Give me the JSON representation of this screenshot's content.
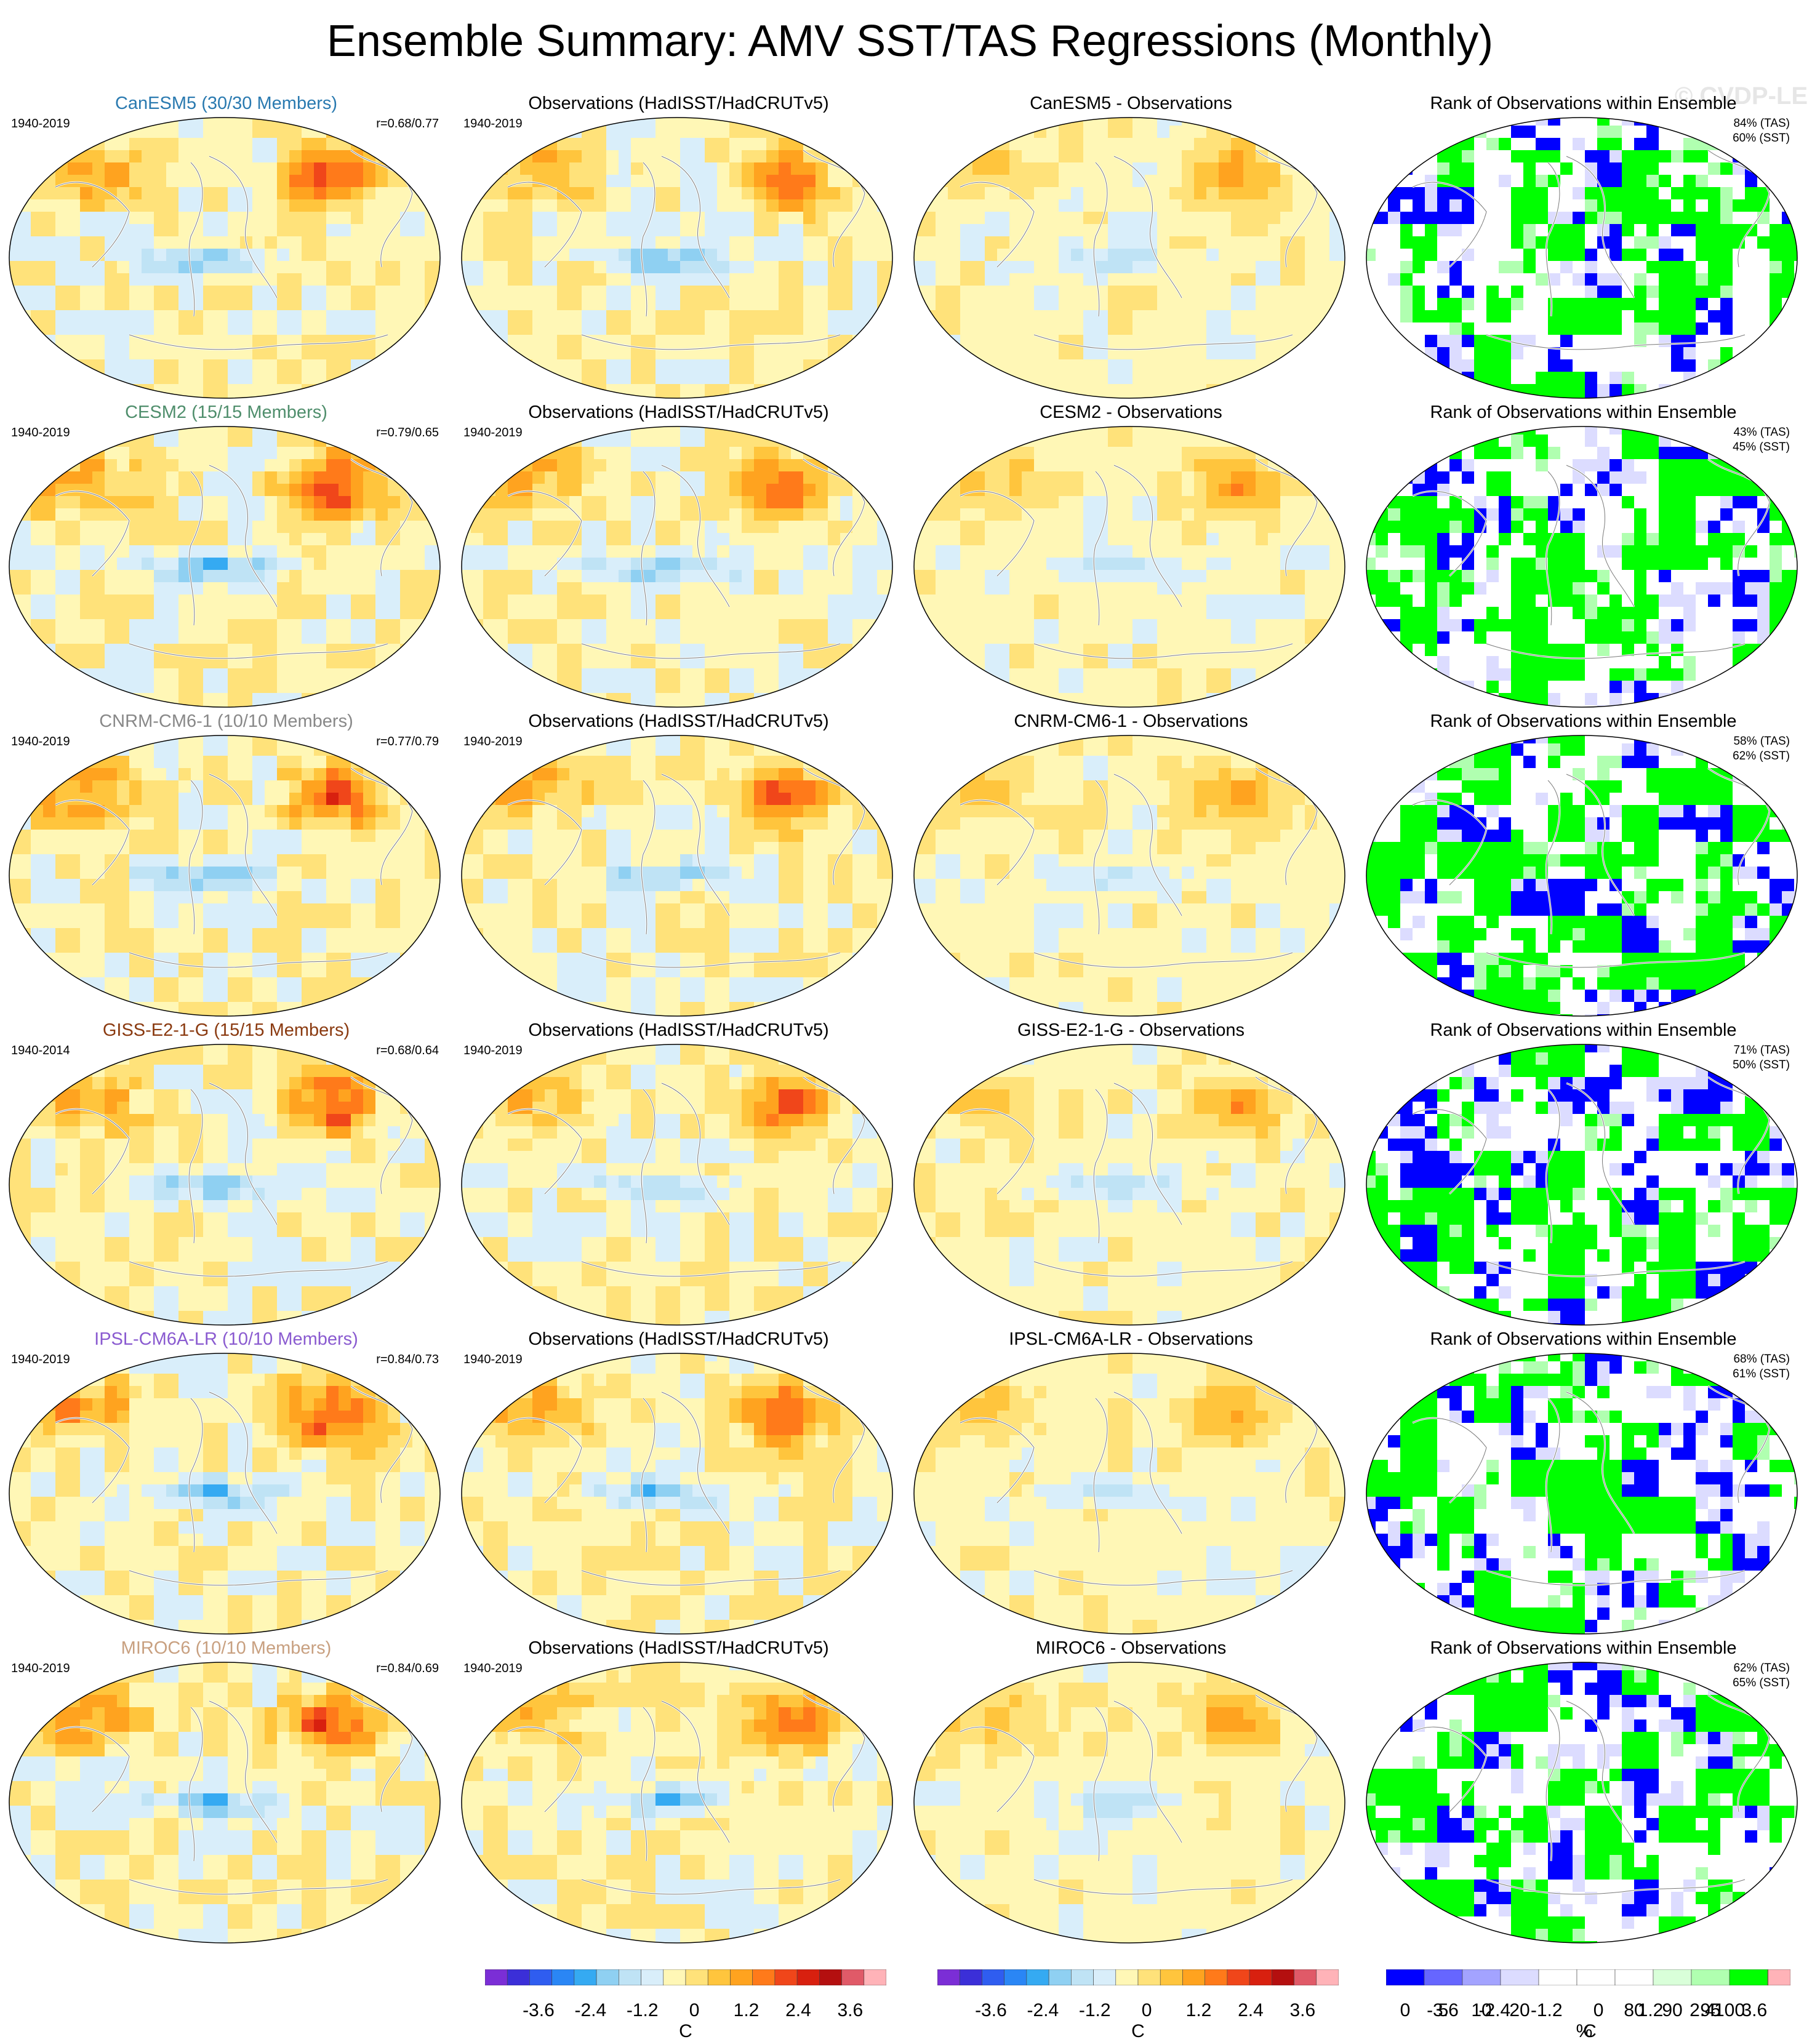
{
  "figure": {
    "title": "Ensemble Summary: AMV SST/TAS Regressions (Monthly)",
    "watermark": "© CVDP-LE"
  },
  "palettes": {
    "diverging": [
      "#7b2ed6",
      "#3b2fd8",
      "#2f5df0",
      "#2a86f5",
      "#35aaf2",
      "#8fd0f2",
      "#bfe3f5",
      "#d9eefa",
      "#fff7b6",
      "#ffe27a",
      "#ffc53d",
      "#ffa31f",
      "#ff7a1a",
      "#f0461a",
      "#d8200f",
      "#b40f0f",
      "#e05a68",
      "#ffb3b8"
    ],
    "rank": [
      "#0000ff",
      "#6666ff",
      "#a3a3ff",
      "#dcdcff",
      "#ffffff",
      "#ffffff",
      "#ffffff",
      "#d9ffd9",
      "#b0ffb0",
      "#00ff00"
    ]
  },
  "rows": [
    {
      "model": {
        "title": "CanESM5 (30/30 Members)",
        "title_color": "#2a7ab0",
        "period": "1940-2019",
        "r": "r=0.68/0.77"
      },
      "obs": {
        "title": "Observations (HadISST/HadCRUTv5)",
        "period": "1940-2019"
      },
      "diff": {
        "title": "CanESM5 - Observations"
      },
      "rank": {
        "title": "Rank of Observations within Ensemble",
        "tas": "84% (TAS)",
        "sst": "60% (SST)"
      }
    },
    {
      "model": {
        "title": "CESM2 (15/15 Members)",
        "title_color": "#4f8e6c",
        "period": "1940-2019",
        "r": "r=0.79/0.65"
      },
      "obs": {
        "title": "Observations (HadISST/HadCRUTv5)",
        "period": "1940-2019"
      },
      "diff": {
        "title": "CESM2 - Observations"
      },
      "rank": {
        "title": "Rank of Observations within Ensemble",
        "tas": "43% (TAS)",
        "sst": "45% (SST)"
      }
    },
    {
      "model": {
        "title": "CNRM-CM6-1 (10/10 Members)",
        "title_color": "#888888",
        "period": "1940-2019",
        "r": "r=0.77/0.79"
      },
      "obs": {
        "title": "Observations (HadISST/HadCRUTv5)",
        "period": "1940-2019"
      },
      "diff": {
        "title": "CNRM-CM6-1 - Observations"
      },
      "rank": {
        "title": "Rank of Observations within Ensemble",
        "tas": "58% (TAS)",
        "sst": "62% (SST)"
      }
    },
    {
      "model": {
        "title": "GISS-E2-1-G (15/15 Members)",
        "title_color": "#8a3a10",
        "period": "1940-2014",
        "r": "r=0.68/0.64"
      },
      "obs": {
        "title": "Observations (HadISST/HadCRUTv5)",
        "period": "1940-2019"
      },
      "diff": {
        "title": "GISS-E2-1-G - Observations"
      },
      "rank": {
        "title": "Rank of Observations within Ensemble",
        "tas": "71% (TAS)",
        "sst": "50% (SST)"
      }
    },
    {
      "model": {
        "title": "IPSL-CM6A-LR (10/10 Members)",
        "title_color": "#8a5bd0",
        "period": "1940-2019",
        "r": "r=0.84/0.73"
      },
      "obs": {
        "title": "Observations (HadISST/HadCRUTv5)",
        "period": "1940-2019"
      },
      "diff": {
        "title": "IPSL-CM6A-LR - Observations"
      },
      "rank": {
        "title": "Rank of Observations within Ensemble",
        "tas": "68% (TAS)",
        "sst": "61% (SST)"
      }
    },
    {
      "model": {
        "title": "MIROC6 (10/10 Members)",
        "title_color": "#c8a080",
        "period": "1940-2019",
        "r": "r=0.84/0.69"
      },
      "obs": {
        "title": "Observations (HadISST/HadCRUTv5)",
        "period": "1940-2019"
      },
      "diff": {
        "title": "MIROC6 - Observations"
      },
      "rank": {
        "title": "Rank of Observations within Ensemble",
        "tas": "62% (TAS)",
        "sst": "65% (SST)"
      }
    }
  ],
  "colorbars": {
    "temp_ticks": [
      "-3.6",
      "-2.4",
      "-1.2",
      "0",
      "1.2",
      "2.4",
      "3.6"
    ],
    "temp_unit": "C",
    "rank_ticks": [
      "0",
      "5",
      "10",
      "20",
      "80",
      "90",
      "95",
      "100"
    ],
    "rank_unit": "%"
  }
}
